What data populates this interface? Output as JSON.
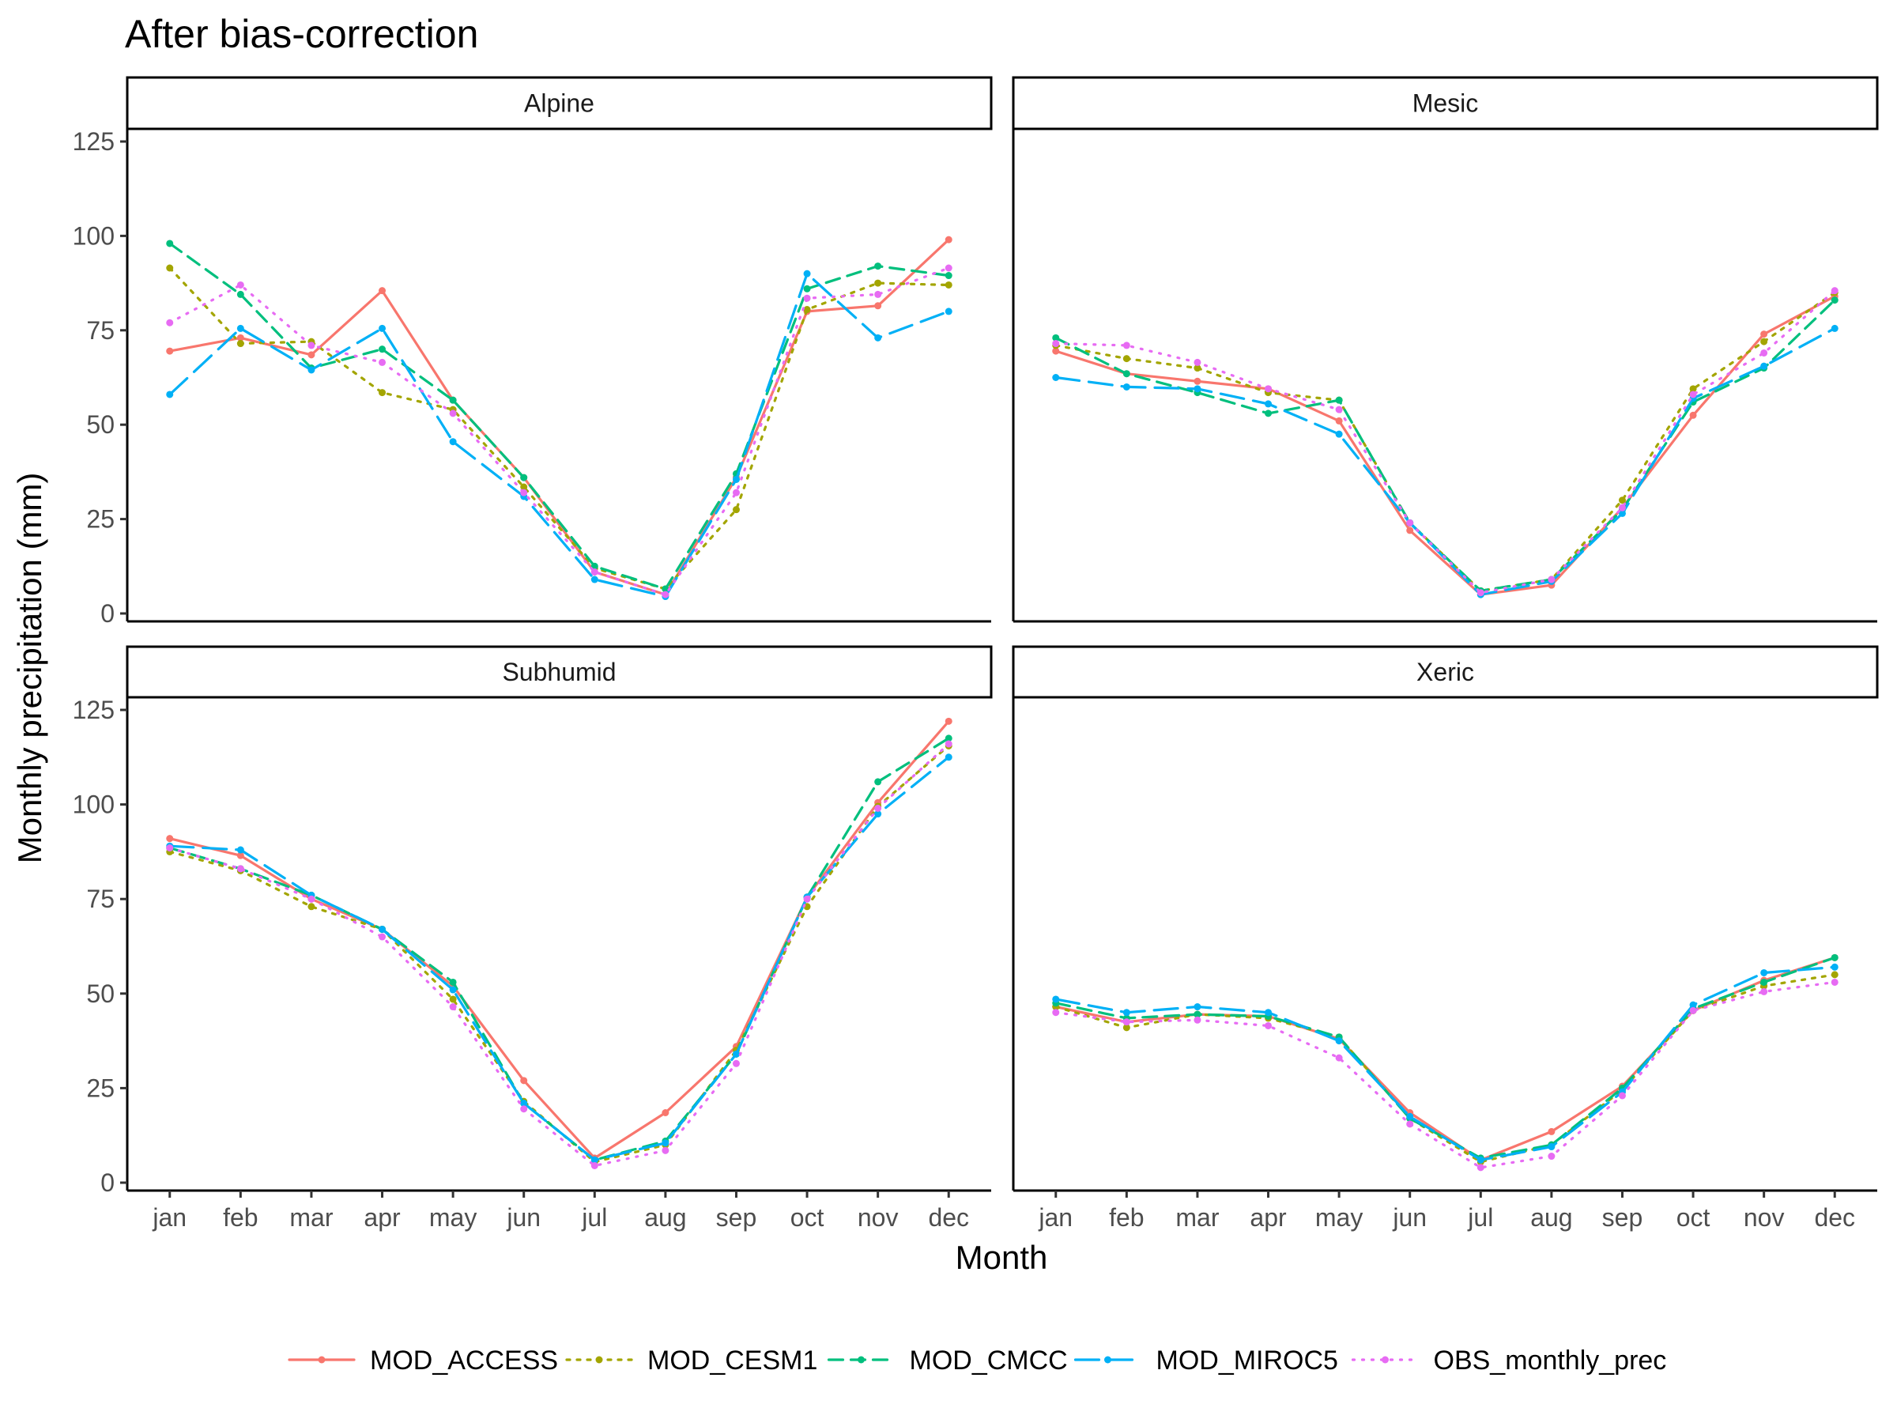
{
  "chart_data": {
    "type": "line",
    "title": "After bias-correction",
    "xlabel": "Month",
    "ylabel": "Monthly precipitation (mm)",
    "ylim": [
      0,
      125
    ],
    "yticks": [
      0,
      25,
      50,
      75,
      100,
      125
    ],
    "categories": [
      "jan",
      "feb",
      "mar",
      "apr",
      "may",
      "jun",
      "jul",
      "aug",
      "sep",
      "oct",
      "nov",
      "dec"
    ],
    "legend_position": "bottom",
    "grid": false,
    "series_styles": [
      {
        "name": "MOD_ACCESS",
        "color": "#F8766D",
        "dash": "solid"
      },
      {
        "name": "MOD_CESM1",
        "color": "#A3A500",
        "dash": "dotted"
      },
      {
        "name": "MOD_CMCC",
        "color": "#00BF7D",
        "dash": "dashed"
      },
      {
        "name": "MOD_MIROC5",
        "color": "#00B0F6",
        "dash": "longdash"
      },
      {
        "name": "OBS_monthly_prec",
        "color": "#E76BF3",
        "dash": "dotted-fine"
      }
    ],
    "panels": [
      {
        "name": "Alpine",
        "series": [
          {
            "name": "MOD_ACCESS",
            "values": [
              69.5,
              73,
              68.5,
              85.5,
              56.5,
              36,
              11,
              5,
              36,
              80,
              81.5,
              99
            ]
          },
          {
            "name": "MOD_CESM1",
            "values": [
              91.5,
              71.5,
              72,
              58.5,
              54,
              33.5,
              12,
              6.5,
              27.5,
              80.5,
              87.5,
              87
            ]
          },
          {
            "name": "MOD_CMCC",
            "values": [
              98,
              84.5,
              65,
              70,
              56.5,
              36,
              12.5,
              6.5,
              37,
              86,
              92,
              89.5
            ]
          },
          {
            "name": "MOD_MIROC5",
            "values": [
              58,
              75.5,
              64.5,
              75.5,
              45.5,
              31,
              9,
              4.5,
              35.5,
              90,
              73,
              80
            ]
          },
          {
            "name": "OBS_monthly_prec",
            "values": [
              77,
              87,
              71,
              66.5,
              53,
              32,
              11,
              5,
              32,
              83.5,
              84.5,
              91.5
            ]
          }
        ]
      },
      {
        "name": "Mesic",
        "series": [
          {
            "name": "MOD_ACCESS",
            "values": [
              69.5,
              63.5,
              61.5,
              59.5,
              51,
              22,
              5,
              7.5,
              28,
              52.5,
              74,
              84
            ]
          },
          {
            "name": "MOD_CESM1",
            "values": [
              71,
              67.5,
              65,
              58.5,
              56.5,
              24,
              6,
              9,
              30,
              59.5,
              72,
              85
            ]
          },
          {
            "name": "MOD_CMCC",
            "values": [
              73,
              63.5,
              58.5,
              53,
              56.5,
              24,
              6,
              9,
              27.5,
              56,
              65,
              83
            ]
          },
          {
            "name": "MOD_MIROC5",
            "values": [
              62.5,
              60,
              59.5,
              55.5,
              47.5,
              24,
              5,
              8.5,
              26.5,
              57,
              65.5,
              75.5
            ]
          },
          {
            "name": "OBS_monthly_prec",
            "values": [
              71.5,
              71,
              66.5,
              59.5,
              54,
              24,
              5.5,
              9,
              28,
              58,
              69,
              85.5
            ]
          }
        ]
      },
      {
        "name": "Subhumid",
        "series": [
          {
            "name": "MOD_ACCESS",
            "values": [
              91,
              86.5,
              75,
              67,
              52,
              27,
              6.5,
              18.5,
              36,
              75.5,
              100.5,
              122
            ]
          },
          {
            "name": "MOD_CESM1",
            "values": [
              87.5,
              82.5,
              73,
              67,
              48.5,
              21.5,
              5.5,
              10,
              35,
              73,
              99.5,
              115.5
            ]
          },
          {
            "name": "MOD_CMCC",
            "values": [
              88.5,
              83,
              76,
              67,
              53,
              21,
              6,
              11,
              34,
              75.5,
              106,
              117.5
            ]
          },
          {
            "name": "MOD_MIROC5",
            "values": [
              89,
              88,
              76,
              67,
              51,
              21,
              6,
              10.5,
              34,
              75.5,
              97.5,
              112.5
            ]
          },
          {
            "name": "OBS_monthly_prec",
            "values": [
              88.5,
              83,
              75,
              65,
              46.5,
              19.5,
              4.5,
              8.5,
              31.5,
              75,
              99,
              116
            ]
          }
        ]
      },
      {
        "name": "Xeric",
        "series": [
          {
            "name": "MOD_ACCESS",
            "values": [
              46.5,
              42.5,
              44.5,
              44,
              38,
              18.5,
              6,
              13.5,
              25.5,
              45.5,
              53.5,
              59.5
            ]
          },
          {
            "name": "MOD_CESM1",
            "values": [
              46.5,
              41,
              44.5,
              43.5,
              38.5,
              17,
              5.5,
              10,
              24.5,
              45.5,
              52,
              55
            ]
          },
          {
            "name": "MOD_CMCC",
            "values": [
              47.5,
              43.5,
              44.5,
              44,
              38.5,
              17,
              6.5,
              10,
              25,
              46,
              53,
              59.5
            ]
          },
          {
            "name": "MOD_MIROC5",
            "values": [
              48.5,
              45,
              46.5,
              45,
              37.5,
              17.5,
              6,
              9.5,
              24,
              47,
              55.5,
              57
            ]
          },
          {
            "name": "OBS_monthly_prec",
            "values": [
              45,
              42.5,
              43,
              41.5,
              33,
              15.5,
              4,
              7,
              23,
              45.5,
              50.5,
              53
            ]
          }
        ]
      }
    ]
  }
}
